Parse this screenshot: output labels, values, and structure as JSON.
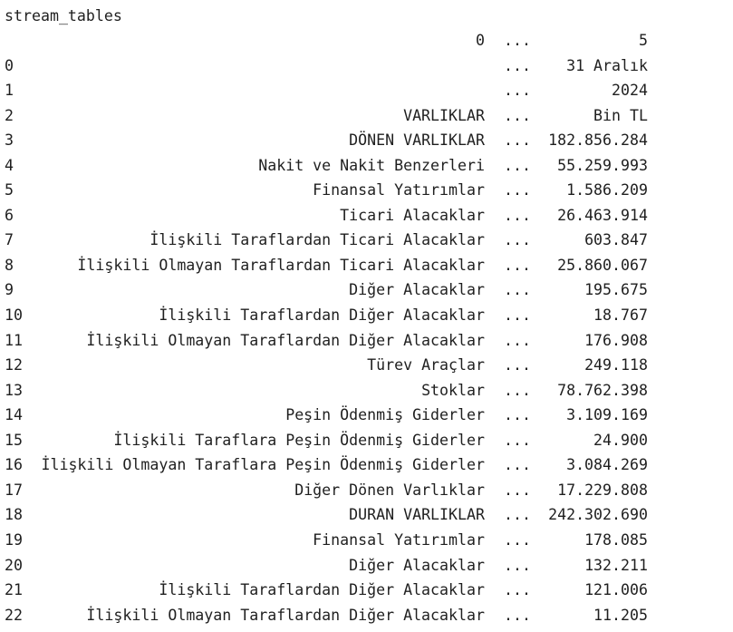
{
  "variable_name": "stream_tables",
  "header": {
    "col_first": "0",
    "ellipsis": "...",
    "col_last": "5"
  },
  "rows": [
    {
      "index": "0",
      "label": "",
      "ellipsis": "...",
      "value": "31 Aralık"
    },
    {
      "index": "1",
      "label": "",
      "ellipsis": "...",
      "value": "2024"
    },
    {
      "index": "2",
      "label": "VARLIKLAR",
      "ellipsis": "...",
      "value": "Bin TL"
    },
    {
      "index": "3",
      "label": "DÖNEN VARLIKLAR",
      "ellipsis": "...",
      "value": "182.856.284"
    },
    {
      "index": "4",
      "label": "Nakit ve Nakit Benzerleri",
      "ellipsis": "...",
      "value": "55.259.993"
    },
    {
      "index": "5",
      "label": "Finansal Yatırımlar",
      "ellipsis": "...",
      "value": "1.586.209"
    },
    {
      "index": "6",
      "label": "Ticari Alacaklar",
      "ellipsis": "...",
      "value": "26.463.914"
    },
    {
      "index": "7",
      "label": "İlişkili Taraflardan Ticari Alacaklar",
      "ellipsis": "...",
      "value": "603.847"
    },
    {
      "index": "8",
      "label": "İlişkili Olmayan Taraflardan Ticari Alacaklar",
      "ellipsis": "...",
      "value": "25.860.067"
    },
    {
      "index": "9",
      "label": "Diğer Alacaklar",
      "ellipsis": "...",
      "value": "195.675"
    },
    {
      "index": "10",
      "label": "İlişkili Taraflardan Diğer Alacaklar",
      "ellipsis": "...",
      "value": "18.767"
    },
    {
      "index": "11",
      "label": "İlişkili Olmayan Taraflardan Diğer Alacaklar",
      "ellipsis": "...",
      "value": "176.908"
    },
    {
      "index": "12",
      "label": "Türev Araçlar",
      "ellipsis": "...",
      "value": "249.118"
    },
    {
      "index": "13",
      "label": "Stoklar",
      "ellipsis": "...",
      "value": "78.762.398"
    },
    {
      "index": "14",
      "label": "Peşin Ödenmiş Giderler",
      "ellipsis": "...",
      "value": "3.109.169"
    },
    {
      "index": "15",
      "label": "İlişkili Taraflara Peşin Ödenmiş Giderler",
      "ellipsis": "...",
      "value": "24.900"
    },
    {
      "index": "16",
      "label": "İlişkili Olmayan Taraflara Peşin Ödenmiş Giderler",
      "ellipsis": "...",
      "value": "3.084.269"
    },
    {
      "index": "17",
      "label": "Diğer Dönen Varlıklar",
      "ellipsis": "...",
      "value": "17.229.808"
    },
    {
      "index": "18",
      "label": "DURAN VARLIKLAR",
      "ellipsis": "...",
      "value": "242.302.690"
    },
    {
      "index": "19",
      "label": "Finansal Yatırımlar",
      "ellipsis": "...",
      "value": "178.085"
    },
    {
      "index": "20",
      "label": "Diğer Alacaklar",
      "ellipsis": "...",
      "value": "132.211"
    },
    {
      "index": "21",
      "label": "İlişkili Taraflardan Diğer Alacaklar",
      "ellipsis": "...",
      "value": "121.006"
    },
    {
      "index": "22",
      "label": "İlişkili Olmayan Taraflardan Diğer Alacaklar",
      "ellipsis": "...",
      "value": "11.205"
    }
  ]
}
